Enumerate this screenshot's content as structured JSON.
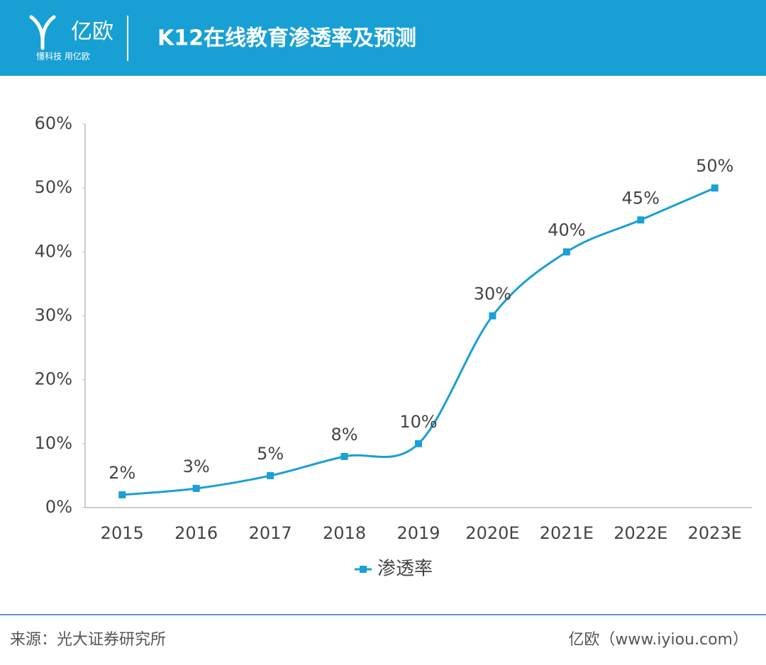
{
  "header": {
    "brand": "亿欧",
    "slogan": "懂科技 用亿欧"
  },
  "chart_data": {
    "type": "line",
    "title": "K12在线教育渗透率及预测",
    "categories": [
      "2015",
      "2016",
      "2017",
      "2018",
      "2019",
      "2020E",
      "2021E",
      "2022E",
      "2023E"
    ],
    "series": [
      {
        "name": "渗透率",
        "color": "#1a9fd6",
        "values": [
          2,
          3,
          5,
          8,
          10,
          30,
          40,
          45,
          50
        ],
        "value_labels": [
          "2%",
          "3%",
          "5%",
          "8%",
          "10%",
          "30%",
          "40%",
          "45%",
          "50%"
        ]
      }
    ],
    "ylim": [
      0,
      60
    ],
    "yticks": [
      {
        "value": 0,
        "label": "0%"
      },
      {
        "value": 10,
        "label": "10%"
      },
      {
        "value": 20,
        "label": "20%"
      },
      {
        "value": 30,
        "label": "30%"
      },
      {
        "value": 40,
        "label": "40%"
      },
      {
        "value": 50,
        "label": "50%"
      },
      {
        "value": 60,
        "label": "60%"
      }
    ],
    "grid": false,
    "smooth": true,
    "legend": "bottom"
  },
  "footer": {
    "source": "来源：光大证券研究所",
    "credit": "亿欧（www.iyiou.com）"
  }
}
